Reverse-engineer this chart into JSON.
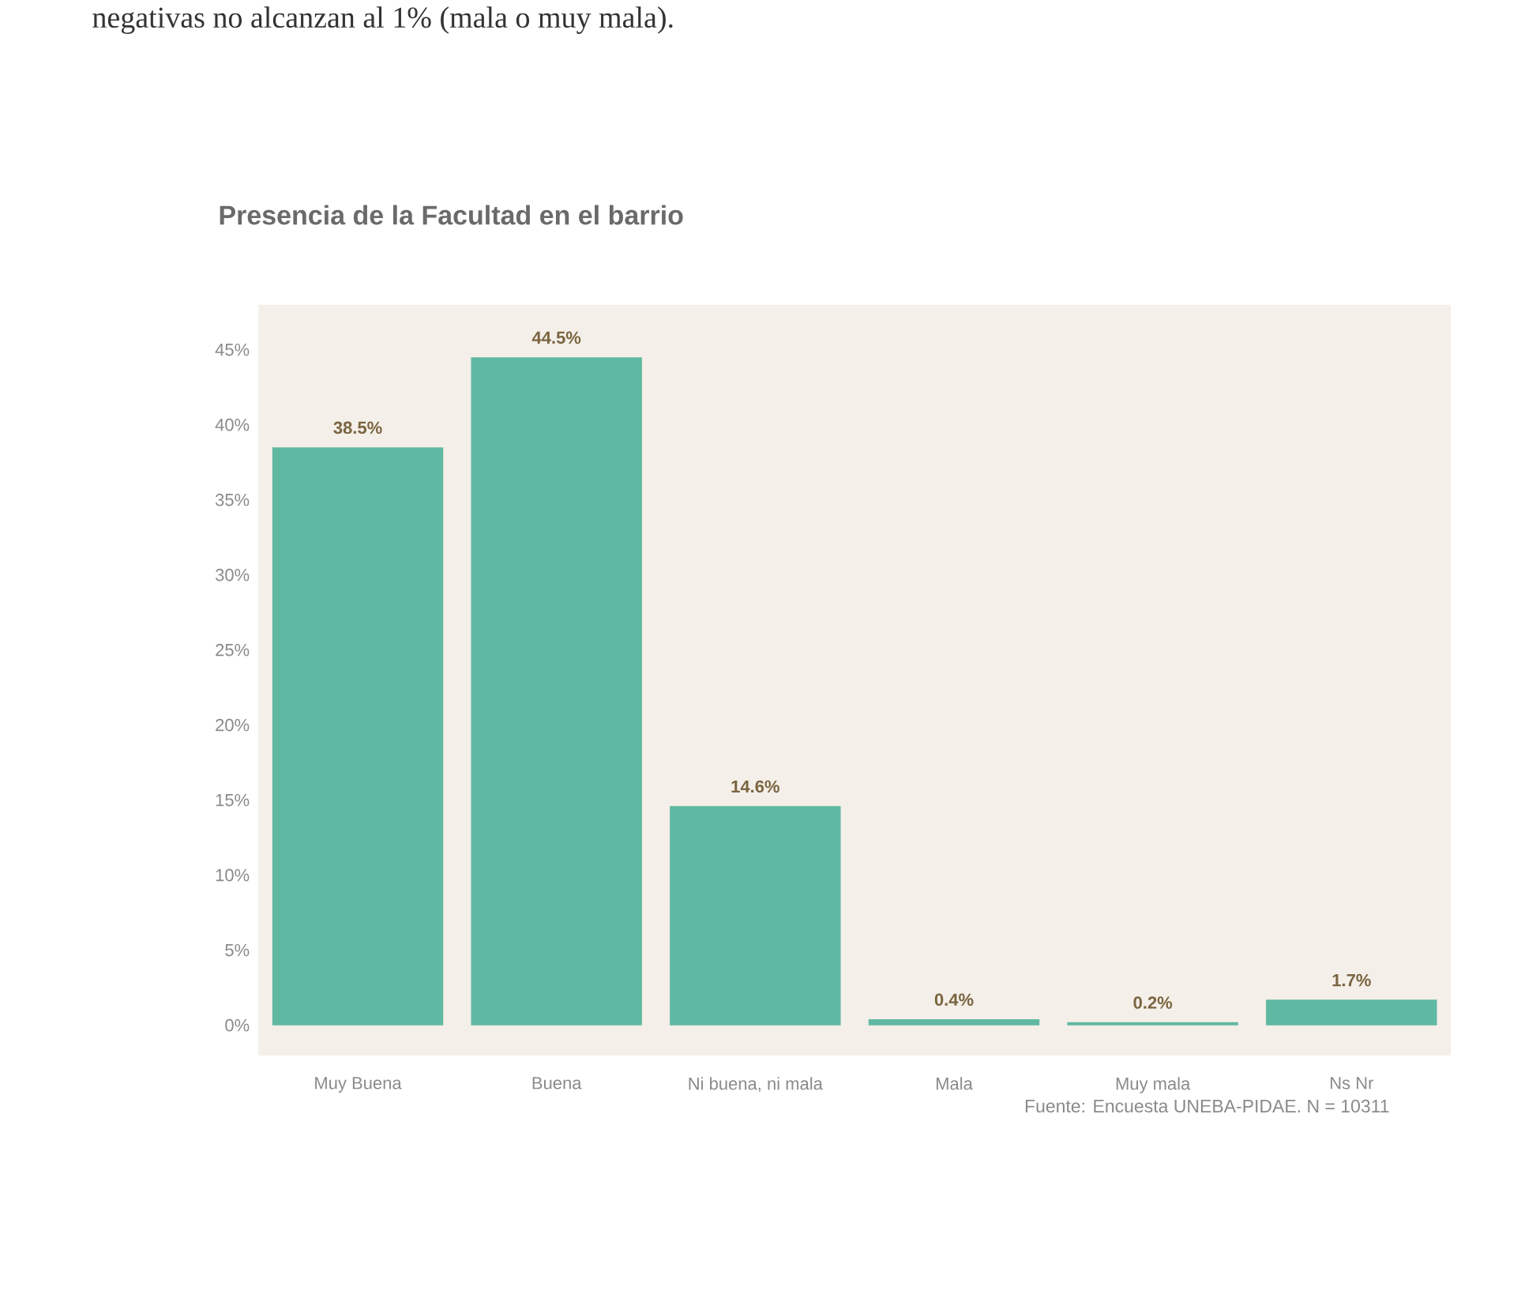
{
  "chart_data": {
    "type": "bar",
    "title": "Presencia de la Facultad en el barrio",
    "categories": [
      "Muy Buena",
      "Buena",
      "Ni buena, ni mala",
      "Mala",
      "Muy mala",
      "Ns Nr"
    ],
    "values": [
      38.5,
      44.5,
      14.6,
      0.4,
      0.2,
      1.7
    ],
    "value_labels": [
      "38.5%",
      "44.5%",
      "14.6%",
      "0.4%",
      "0.2%",
      "1.7%"
    ],
    "color": "#5fb8a2",
    "ylim": [
      -2,
      48
    ],
    "yticks": [
      {
        "value": 0,
        "label": "0%"
      },
      {
        "value": 5,
        "label": "5%"
      },
      {
        "value": 10,
        "label": "10%"
      },
      {
        "value": 15,
        "label": "15%"
      },
      {
        "value": 20,
        "label": "20%"
      },
      {
        "value": 25,
        "label": "25%"
      },
      {
        "value": 30,
        "label": "30%"
      },
      {
        "value": 35,
        "label": "35%"
      },
      {
        "value": 40,
        "label": "40%"
      },
      {
        "value": 45,
        "label": "45%"
      }
    ],
    "annotations": [
      "negativas no alcanzan al 1% (mala o muy mala).",
      "Fuente: Encuesta UNEBA-PIDAE. N = 10311"
    ]
  }
}
